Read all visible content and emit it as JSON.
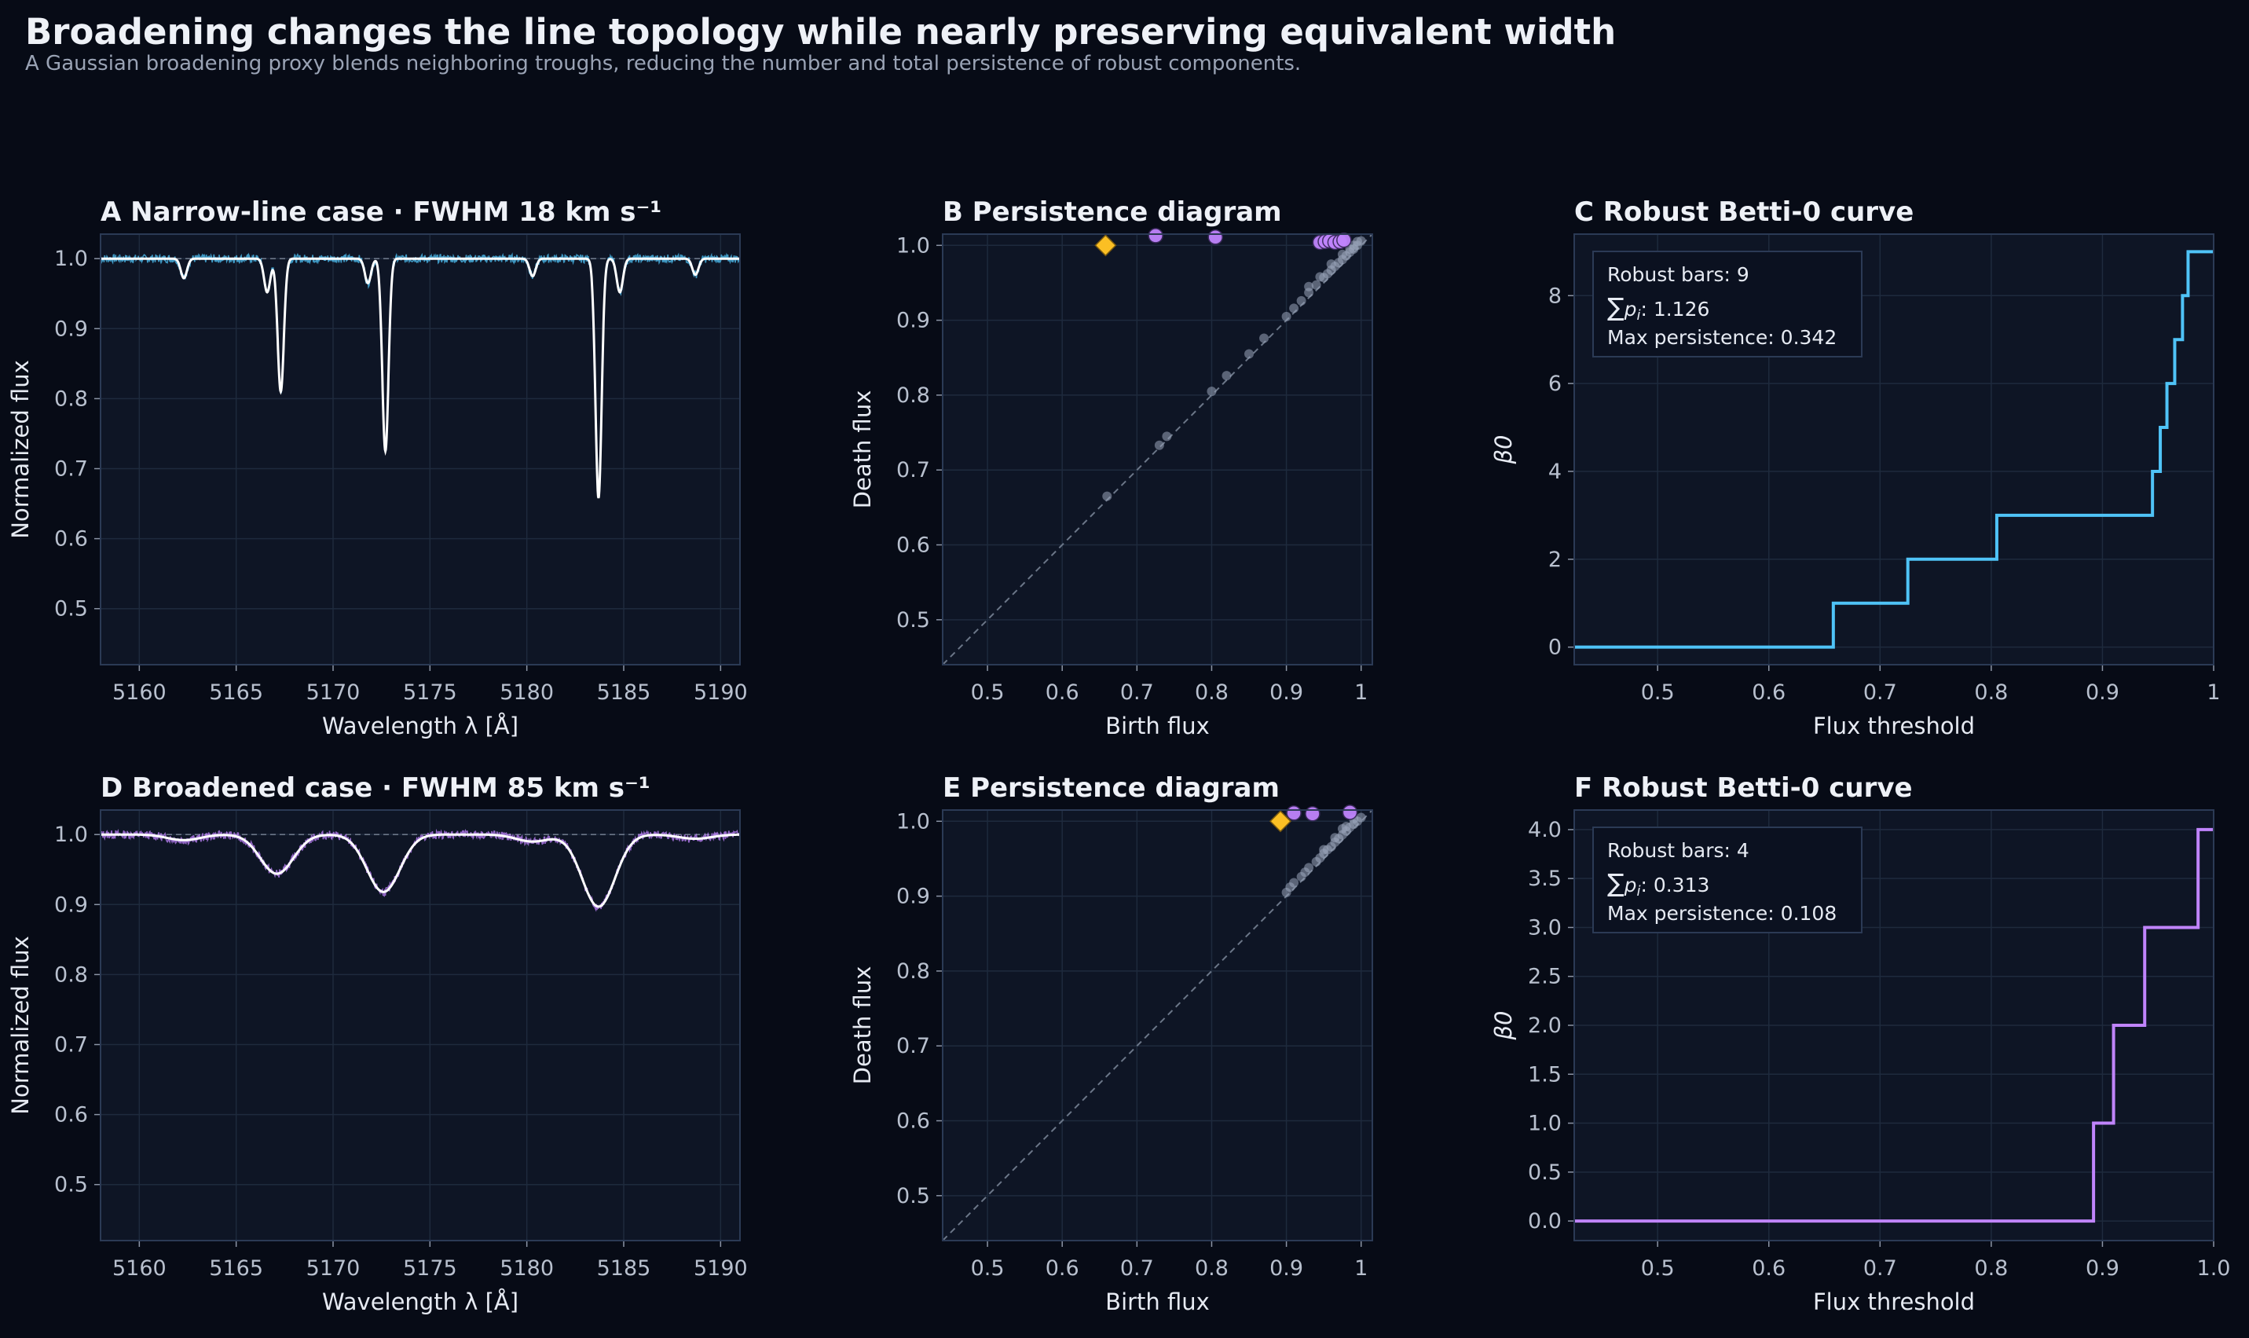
{
  "figure": {
    "title": "Broadening changes the line topology while nearly preserving equivalent width",
    "subtitle": "A Gaussian broadening proxy blends neighboring troughs, reducing the number and total persistence of robust components."
  },
  "colors": {
    "background": "#070b16",
    "panel": "#0e1525",
    "grid": "#1e2a3d",
    "spine": "#2b3a55",
    "narrow_accent": "#4fc3f7",
    "broad_accent": "#c084fc",
    "model_line": "#ffffff",
    "highlight_marker": "#fbbf24",
    "diagonal": "#6b7688",
    "points": "#9aa5bb"
  },
  "chart_data": [
    {
      "id": "A",
      "type": "line",
      "title": "A  Narrow-line case · FWHM 18 km s⁻¹",
      "xlabel": "Wavelength λ [Å]",
      "ylabel": "Normalized flux",
      "xlim": [
        5158,
        5191
      ],
      "ylim": [
        0.42,
        1.035
      ],
      "xticks": [
        5160,
        5165,
        5170,
        5175,
        5180,
        5185,
        5190
      ],
      "yticks": [
        0.5,
        0.6,
        0.7,
        0.8,
        0.9,
        1.0
      ],
      "grid": true,
      "continuum_reference": 1.0,
      "series": [
        {
          "name": "",
          "role": "observed",
          "color": "#4fc3f7",
          "x": [
            5158,
            5191
          ],
          "y": [
            1.0,
            1.0
          ]
        },
        {
          "name": "",
          "role": "model",
          "color": "#ffffff",
          "x": [
            5158,
            5162.3,
            5166.6,
            5167.3,
            5171.8,
            5172.7,
            5180.3,
            5183.7,
            5184.8,
            5188.7,
            5191
          ],
          "y": [
            1.0,
            0.972,
            0.952,
            0.81,
            0.965,
            0.725,
            0.975,
            0.658,
            0.952,
            0.977,
            1.0
          ]
        }
      ]
    },
    {
      "id": "B",
      "type": "scatter",
      "title": "B  Persistence diagram",
      "xlabel": "Birth flux",
      "ylabel": "Death flux",
      "xlim": [
        0.44,
        1.015
      ],
      "ylim": [
        0.44,
        1.015
      ],
      "xticks": [
        0.5,
        0.6,
        0.7,
        0.8,
        0.9,
        1.0
      ],
      "yticks": [
        0.5,
        0.6,
        0.7,
        0.8,
        0.9,
        1.0
      ],
      "grid": true,
      "diagonal": true,
      "highlight": {
        "x": 0.658,
        "y": 1.0
      },
      "robust_points": {
        "x": [
          0.725,
          0.805,
          0.945,
          0.952,
          0.958,
          0.965,
          0.972,
          0.977
        ],
        "y": [
          1.013,
          1.011,
          1.004,
          1.005,
          1.006,
          1.004,
          1.005,
          1.007
        ]
      },
      "noise_points": {
        "x": [
          0.66,
          0.73,
          0.74,
          0.8,
          0.82,
          0.85,
          0.87,
          0.9,
          0.91,
          0.92,
          0.93,
          0.94,
          0.95,
          0.955,
          0.96,
          0.965,
          0.97,
          0.975,
          0.98,
          0.985,
          0.99,
          0.995,
          1.0,
          0.93,
          0.945,
          0.96,
          0.975,
          0.99,
          0.985,
          0.995
        ],
        "y": [
          0.665,
          0.733,
          0.745,
          0.805,
          0.826,
          0.855,
          0.876,
          0.905,
          0.916,
          0.926,
          0.937,
          0.947,
          0.957,
          0.962,
          0.967,
          0.972,
          0.977,
          0.981,
          0.986,
          0.991,
          0.995,
          1.0,
          1.006,
          0.945,
          0.958,
          0.975,
          0.988,
          1.0,
          0.995,
          1.005
        ]
      }
    },
    {
      "id": "C",
      "type": "line",
      "title": "C  Robust Betti-0 curve",
      "xlabel": "Flux threshold",
      "ylabel": "β0",
      "xlim": [
        0.425,
        1.0
      ],
      "ylim": [
        -0.4,
        9.4
      ],
      "xticks": [
        0.5,
        0.6,
        0.7,
        0.8,
        0.9,
        1.0
      ],
      "xtick_labels": [
        "0.5",
        "0.6",
        "0.7",
        "0.8",
        "0.9",
        "1"
      ],
      "yticks": [
        0,
        2,
        4,
        6,
        8
      ],
      "ytick_labels": [
        "0",
        "2",
        "4",
        "6",
        "8"
      ],
      "grid": true,
      "step": true,
      "color": "#4fc3f7",
      "x": [
        0.425,
        0.658,
        0.725,
        0.805,
        0.945,
        0.952,
        0.958,
        0.965,
        0.972,
        0.977,
        1.0
      ],
      "y": [
        0,
        1,
        2,
        3,
        4,
        5,
        6,
        7,
        8,
        9,
        9
      ],
      "legend_position": "upper-left",
      "annotation": {
        "robust_bars": "Robust bars: 9",
        "sum_p": ": 1.126",
        "max_persistence": "Max persistence: 0.342"
      }
    },
    {
      "id": "D",
      "type": "line",
      "title": "D  Broadened case · FWHM 85 km s⁻¹",
      "xlabel": "Wavelength λ [Å]",
      "ylabel": "Normalized flux",
      "xlim": [
        5158,
        5191
      ],
      "ylim": [
        0.42,
        1.035
      ],
      "xticks": [
        5160,
        5165,
        5170,
        5175,
        5180,
        5185,
        5190
      ],
      "yticks": [
        0.5,
        0.6,
        0.7,
        0.8,
        0.9,
        1.0
      ],
      "grid": true,
      "continuum_reference": 1.0,
      "series": [
        {
          "name": "",
          "role": "observed",
          "color": "#c084fc",
          "x": [
            5158,
            5191
          ],
          "y": [
            1.0,
            1.0
          ]
        },
        {
          "name": "",
          "role": "model",
          "color": "#ffffff",
          "x": [
            5158,
            5162.3,
            5167.1,
            5172.6,
            5180.3,
            5183.7,
            5188.7,
            5191
          ],
          "y": [
            1.0,
            0.992,
            0.944,
            0.918,
            0.99,
            0.897,
            0.994,
            1.0
          ]
        }
      ]
    },
    {
      "id": "E",
      "type": "scatter",
      "title": "E  Persistence diagram",
      "xlabel": "Birth flux",
      "ylabel": "Death flux",
      "xlim": [
        0.44,
        1.015
      ],
      "ylim": [
        0.44,
        1.015
      ],
      "xticks": [
        0.5,
        0.6,
        0.7,
        0.8,
        0.9,
        1.0
      ],
      "yticks": [
        0.5,
        0.6,
        0.7,
        0.8,
        0.9,
        1.0
      ],
      "grid": true,
      "diagonal": true,
      "highlight": {
        "x": 0.892,
        "y": 1.0
      },
      "robust_points": {
        "x": [
          0.91,
          0.935,
          0.985
        ],
        "y": [
          1.011,
          1.01,
          1.012
        ]
      },
      "noise_points": {
        "x": [
          0.9,
          0.905,
          0.91,
          0.92,
          0.925,
          0.93,
          0.94,
          0.945,
          0.95,
          0.955,
          0.96,
          0.965,
          0.97,
          0.975,
          0.98,
          0.985,
          0.99,
          0.995,
          1.0,
          0.95,
          0.965,
          0.98,
          0.99,
          0.975
        ],
        "y": [
          0.905,
          0.912,
          0.918,
          0.926,
          0.932,
          0.938,
          0.946,
          0.951,
          0.957,
          0.962,
          0.966,
          0.972,
          0.977,
          0.982,
          0.987,
          0.992,
          0.996,
          1.0,
          1.005,
          0.962,
          0.978,
          0.993,
          1.003,
          0.99
        ]
      }
    },
    {
      "id": "F",
      "type": "line",
      "title": "F  Robust Betti-0 curve",
      "xlabel": "Flux threshold",
      "ylabel": "β0",
      "xlim": [
        0.425,
        1.0
      ],
      "ylim": [
        -0.2,
        4.2
      ],
      "xticks": [
        0.5,
        0.6,
        0.7,
        0.8,
        0.9,
        1.0
      ],
      "xtick_labels": [
        "0.5",
        "0.6",
        "0.7",
        "0.8",
        "0.9",
        "1.0"
      ],
      "yticks": [
        0,
        0.5,
        1,
        1.5,
        2,
        2.5,
        3,
        3.5,
        4
      ],
      "ytick_labels": [
        "0.0",
        "0.5",
        "1.0",
        "1.5",
        "2.0",
        "2.5",
        "3.0",
        "3.5",
        "4.0"
      ],
      "grid": true,
      "step": true,
      "color": "#c084fc",
      "x": [
        0.425,
        0.892,
        0.91,
        0.938,
        0.986,
        1.0
      ],
      "y": [
        0,
        1,
        2,
        3,
        4,
        4
      ],
      "legend_position": "upper-left",
      "annotation": {
        "robust_bars": "Robust bars: 4",
        "sum_p": ": 0.313",
        "max_persistence": "Max persistence: 0.108"
      }
    }
  ]
}
